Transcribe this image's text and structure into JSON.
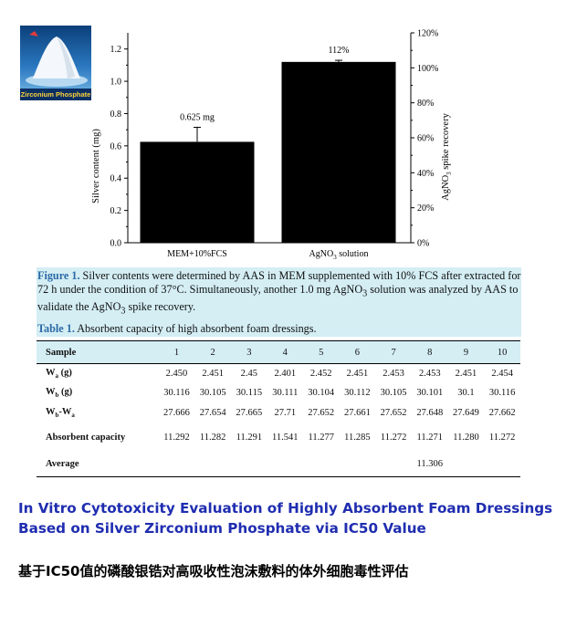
{
  "logo": {
    "caption": "Zirconium Phosphate"
  },
  "chart_data": {
    "type": "bar",
    "categories": [
      "MEM+10%FCS",
      "AgNO3 solution"
    ],
    "values": [
      0.625,
      1.12
    ],
    "error_bars": [
      0.09,
      0.01
    ],
    "data_labels": [
      "0.625 mg",
      "112%"
    ],
    "ylabel": "Silver content (mg)",
    "ylabel_right": "AgNO3 spike recovery",
    "ylim": [
      0,
      1.3
    ],
    "yticks": [
      "0.0",
      "0.2",
      "0.4",
      "0.6",
      "0.8",
      "1.0",
      "1.2"
    ],
    "ylim_right": [
      0,
      120
    ],
    "yticks_right": [
      "0%",
      "20%",
      "40%",
      "60%",
      "80%",
      "100%",
      "120%"
    ],
    "bar_color": "#000000"
  },
  "figure": {
    "label": "Figure 1.",
    "caption_1": " Silver contents were determined by AAS in MEM supplemented with 10% FCS after extracted for 72 h under the condition of 37°C. Simultaneously, another 1.0 mg AgNO",
    "caption_sub": "3",
    "caption_2": " solution was analyzed by AAS to validate the AgNO",
    "caption_3": " spike recovery."
  },
  "table": {
    "label": "Table 1.",
    "title": " Absorbent capacity of high absorbent foam dressings.",
    "header_first": "Sample",
    "columns": [
      "1",
      "2",
      "3",
      "4",
      "5",
      "6",
      "7",
      "8",
      "9",
      "10"
    ],
    "rows": [
      {
        "label": "Wa (g)",
        "values": [
          "2.450",
          "2.451",
          "2.45",
          "2.401",
          "2.452",
          "2.451",
          "2.453",
          "2.453",
          "2.451",
          "2.454"
        ]
      },
      {
        "label": "Wb (g)",
        "values": [
          "30.116",
          "30.105",
          "30.115",
          "30.111",
          "30.104",
          "30.112",
          "30.105",
          "30.101",
          "30.1",
          "30.116"
        ]
      },
      {
        "label": "Wb-Wa",
        "values": [
          "27.666",
          "27.654",
          "27.665",
          "27.71",
          "27.652",
          "27.661",
          "27.652",
          "27.648",
          "27.649",
          "27.662"
        ]
      },
      {
        "label": "Absorbent capacity",
        "values": [
          "11.292",
          "11.282",
          "11.291",
          "11.541",
          "11.277",
          "11.285",
          "11.272",
          "11.271",
          "11.280",
          "11.272"
        ]
      },
      {
        "label": "Average",
        "values": [
          "",
          "",
          "",
          "",
          "",
          "",
          "",
          "11.306",
          "",
          ""
        ]
      }
    ]
  },
  "title_en_line1": "In Vitro Cytotoxicity Evaluation of Highly Absorbent Foam Dressings",
  "title_en_line2": "Based on Silver Zirconium Phosphate via IC50 Value",
  "title_zh": "基于IC50值的磷酸银锆对高吸收性泡沫敷料的体外细胞毒性评估"
}
